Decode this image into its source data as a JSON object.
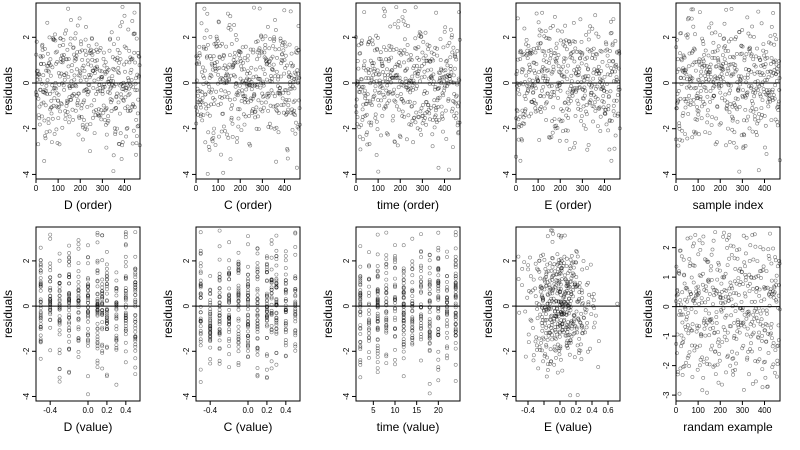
{
  "figure": {
    "ylabel": "residuals",
    "point_style": "open circles, semi-transparent black",
    "reference_line": 0
  },
  "chart_data": [
    {
      "type": "scatter",
      "xlabel": "D (order)",
      "ylabel": "residuals",
      "xlim": [
        0,
        470
      ],
      "ylim": [
        -4.2,
        3.5
      ],
      "xticks": [
        0,
        100,
        200,
        300,
        400
      ],
      "yticks": [
        -4,
        -2,
        0,
        2
      ],
      "n_points": 470,
      "x_kind": "index",
      "hline": 0
    },
    {
      "type": "scatter",
      "xlabel": "C (order)",
      "ylabel": "residuals",
      "xlim": [
        0,
        470
      ],
      "ylim": [
        -4.2,
        3.5
      ],
      "xticks": [
        0,
        100,
        200,
        300,
        400
      ],
      "yticks": [
        -4,
        -2,
        0,
        2
      ],
      "n_points": 470,
      "x_kind": "index",
      "hline": 0
    },
    {
      "type": "scatter",
      "xlabel": "time (order)",
      "ylabel": "residuals",
      "xlim": [
        0,
        470
      ],
      "ylim": [
        -4.2,
        3.5
      ],
      "xticks": [
        0,
        100,
        200,
        300,
        400
      ],
      "yticks": [
        -4,
        -2,
        0,
        2
      ],
      "n_points": 470,
      "x_kind": "index",
      "hline": 0
    },
    {
      "type": "scatter",
      "xlabel": "E (order)",
      "ylabel": "residuals",
      "xlim": [
        0,
        470
      ],
      "ylim": [
        -4.2,
        3.5
      ],
      "xticks": [
        0,
        100,
        200,
        300,
        400
      ],
      "yticks": [
        -4,
        -2,
        0,
        2
      ],
      "n_points": 470,
      "x_kind": "index",
      "hline": 0
    },
    {
      "type": "scatter",
      "xlabel": "sample index",
      "ylabel": "residuals",
      "xlim": [
        0,
        470
      ],
      "ylim": [
        -4.2,
        3.5
      ],
      "xticks": [
        0,
        100,
        200,
        300,
        400
      ],
      "yticks": [
        -4,
        -2,
        0,
        2
      ],
      "n_points": 470,
      "x_kind": "index",
      "hline": 0
    },
    {
      "type": "scatter",
      "xlabel": "D (value)",
      "ylabel": "residuals",
      "xlim": [
        -0.55,
        0.55
      ],
      "ylim": [
        -4.2,
        3.5
      ],
      "xticks": [
        -0.4,
        0.0,
        0.2,
        0.4
      ],
      "xticklabels": [
        "-0.4",
        "0.0",
        "0.2",
        "0.4"
      ],
      "yticks": [
        -4,
        -2,
        0,
        2
      ],
      "n_points": 470,
      "x_kind": "discrete",
      "x_levels": [
        -0.5,
        -0.4,
        -0.3,
        -0.2,
        -0.1,
        0.0,
        0.1,
        0.15,
        0.2,
        0.3,
        0.4,
        0.5
      ],
      "hline": 0
    },
    {
      "type": "scatter",
      "xlabel": "C (value)",
      "ylabel": "residuals",
      "xlim": [
        -0.55,
        0.55
      ],
      "ylim": [
        -4.2,
        3.5
      ],
      "xticks": [
        -0.4,
        0.0,
        0.2,
        0.4
      ],
      "xticklabels": [
        "-0.4",
        "0.0",
        "0.2",
        "0.4"
      ],
      "yticks": [
        -4,
        -2,
        0,
        2
      ],
      "n_points": 470,
      "x_kind": "discrete",
      "x_levels": [
        -0.5,
        -0.4,
        -0.3,
        -0.2,
        -0.1,
        0.0,
        0.1,
        0.2,
        0.25,
        0.3,
        0.4,
        0.5
      ],
      "hline": 0
    },
    {
      "type": "scatter",
      "xlabel": "time (value)",
      "ylabel": "residuals",
      "xlim": [
        1,
        25
      ],
      "ylim": [
        -4.2,
        3.5
      ],
      "xticks": [
        5,
        10,
        15,
        20
      ],
      "yticks": [
        -4,
        -2,
        0,
        2
      ],
      "n_points": 470,
      "x_kind": "discrete",
      "x_levels": [
        2,
        4,
        6,
        8,
        10,
        12,
        14,
        16,
        18,
        20,
        22,
        24
      ],
      "hline": 0
    },
    {
      "type": "scatter",
      "xlabel": "E (value)",
      "ylabel": "residuals",
      "xlim": [
        -0.55,
        0.75
      ],
      "ylim": [
        -4.2,
        3.5
      ],
      "xticks": [
        -0.4,
        -0.2,
        0.0,
        0.2,
        0.4,
        0.6
      ],
      "xticklabels": [
        "-0.4",
        "",
        "0.0",
        "0.2",
        "0.4",
        "0.6"
      ],
      "yticks": [
        -4,
        -2,
        0,
        2
      ],
      "n_points": 470,
      "x_kind": "continuous",
      "x_center": 0.0,
      "x_spread": 0.2,
      "hline": 0
    },
    {
      "type": "scatter",
      "xlabel": "randam example",
      "ylabel": "residuals",
      "xlim": [
        0,
        470
      ],
      "ylim": [
        -3.2,
        2.7
      ],
      "xticks": [
        0,
        100,
        200,
        300,
        400
      ],
      "yticks": [
        -3,
        -2,
        -1,
        0,
        1,
        2
      ],
      "n_points": 470,
      "x_kind": "index",
      "hline": 0
    }
  ]
}
